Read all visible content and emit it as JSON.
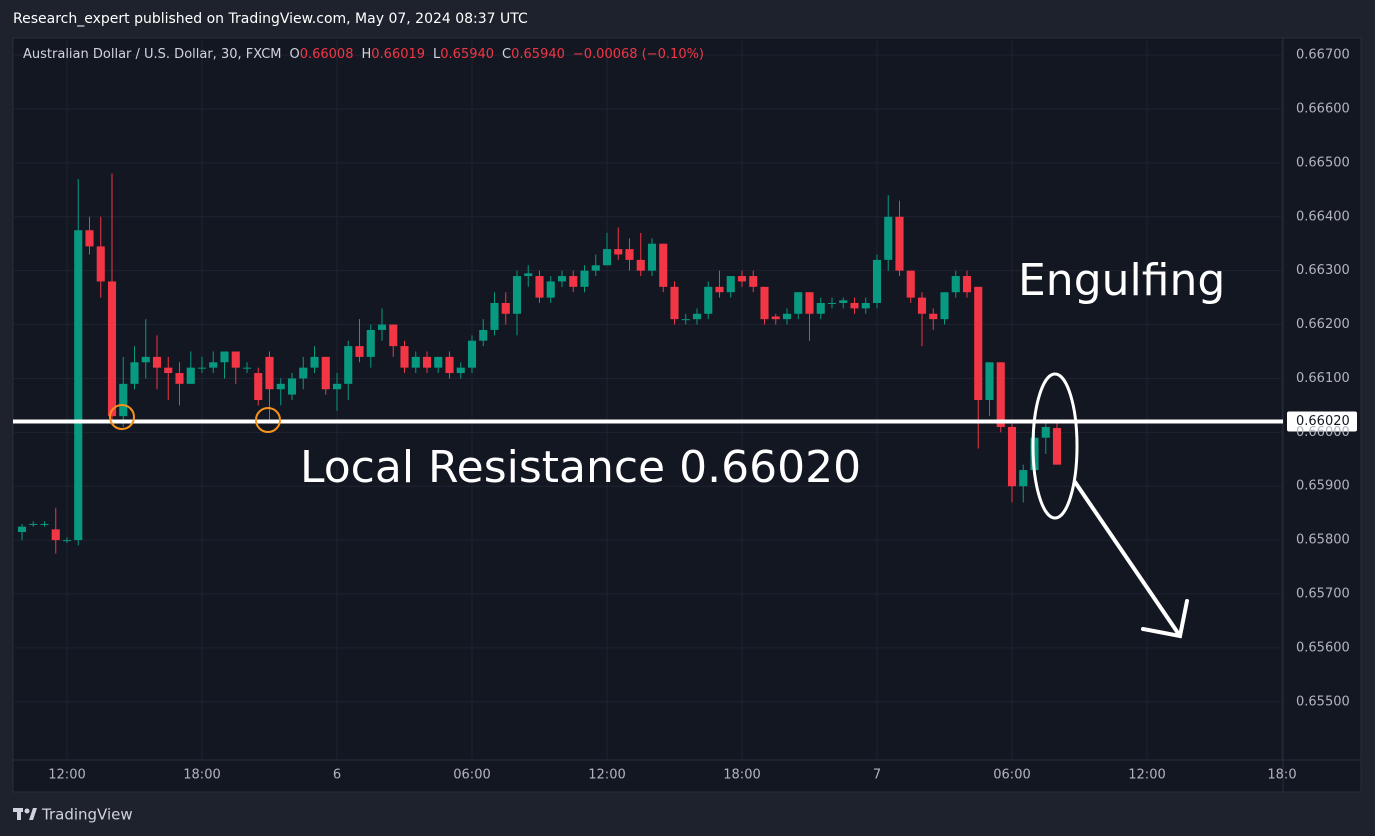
{
  "header": {
    "publisher": "Research_expert published on TradingView.com, May 07, 2024 08:37 UTC"
  },
  "footer": {
    "brand": "TradingView"
  },
  "chart_data": {
    "type": "candlestick",
    "title": "Australian Dollar / U.S. Dollar, 30, FXCM",
    "legend": {
      "o_label": "O",
      "o": "0.66008",
      "h_label": "H",
      "h": "0.66019",
      "l_label": "L",
      "l": "0.65940",
      "c_label": "C",
      "c": "0.65940",
      "change": "−0.00068 (−0.10%)"
    },
    "up_color": "#089981",
    "down_color": "#f23645",
    "x": [
      10,
      10.5,
      11,
      11.5,
      12,
      12.5,
      13,
      13.5,
      14,
      14.5,
      15,
      15.5,
      16,
      16.5,
      17,
      17.5,
      18,
      18.5,
      19,
      19.5,
      20,
      20.5,
      21,
      21.5,
      22,
      22.5,
      23,
      23.5,
      24,
      24.5,
      25,
      25.5,
      26,
      26.5,
      27,
      27.5,
      28,
      28.5,
      29,
      29.5,
      30,
      30.5,
      31,
      31.5,
      32,
      32.5,
      33,
      33.5,
      34,
      34.5,
      35,
      35.5,
      36,
      36.5,
      37,
      37.5,
      38,
      38.5,
      39,
      39.5,
      40,
      40.5,
      41,
      41.5,
      42,
      42.5,
      43,
      43.5,
      44,
      44.5,
      45,
      45.5,
      46,
      46.5,
      47,
      47.5,
      48,
      48.5,
      49,
      49.5,
      50,
      50.5,
      51,
      51.5,
      52,
      52.5,
      53,
      53.5,
      54,
      54.5,
      55,
      55.5,
      56
    ],
    "open": [
      0.65815,
      0.6583,
      0.6583,
      0.6582,
      0.658,
      0.658,
      0.66375,
      0.66345,
      0.6628,
      0.6603,
      0.6609,
      0.6613,
      0.6614,
      0.6612,
      0.6611,
      0.6609,
      0.6612,
      0.6612,
      0.6613,
      0.6615,
      0.6612,
      0.6611,
      0.6614,
      0.6608,
      0.6607,
      0.661,
      0.6612,
      0.6614,
      0.6608,
      0.6609,
      0.6616,
      0.6614,
      0.6619,
      0.662,
      0.6616,
      0.6612,
      0.6614,
      0.6612,
      0.6614,
      0.6611,
      0.6612,
      0.6617,
      0.6619,
      0.6624,
      0.6622,
      0.6629,
      0.6629,
      0.6625,
      0.6628,
      0.6629,
      0.6627,
      0.663,
      0.6631,
      0.6634,
      0.6634,
      0.6632,
      0.663,
      0.6635,
      0.6627,
      0.6621,
      0.6621,
      0.6622,
      0.6627,
      0.6626,
      0.6629,
      0.6629,
      0.6627,
      0.66215,
      0.6621,
      0.6622,
      0.6626,
      0.6622,
      0.6624,
      0.6624,
      0.6624,
      0.6623,
      0.6624,
      0.6632,
      0.664,
      0.663,
      0.6625,
      0.6622,
      0.6621,
      0.6626,
      0.6629,
      0.6627,
      0.6606,
      0.6613,
      0.6601,
      0.659,
      0.6593,
      0.6599,
      0.66008
    ],
    "high": [
      0.6583,
      0.65835,
      0.65835,
      0.6586,
      0.65805,
      0.6647,
      0.664,
      0.664,
      0.6648,
      0.6614,
      0.6616,
      0.6621,
      0.6618,
      0.6614,
      0.6613,
      0.6615,
      0.6614,
      0.6615,
      0.6615,
      0.6615,
      0.6613,
      0.6612,
      0.6615,
      0.661,
      0.6611,
      0.6614,
      0.6616,
      0.6614,
      0.6611,
      0.6617,
      0.6621,
      0.662,
      0.6623,
      0.662,
      0.6617,
      0.6615,
      0.6615,
      0.6614,
      0.6615,
      0.6613,
      0.6618,
      0.6621,
      0.6626,
      0.6626,
      0.663,
      0.6631,
      0.663,
      0.6629,
      0.663,
      0.663,
      0.6631,
      0.6633,
      0.6637,
      0.6638,
      0.6636,
      0.6637,
      0.6636,
      0.6635,
      0.6628,
      0.6622,
      0.6623,
      0.6628,
      0.663,
      0.6629,
      0.663,
      0.663,
      0.6627,
      0.6622,
      0.6623,
      0.6626,
      0.6626,
      0.6625,
      0.6625,
      0.6625,
      0.6625,
      0.6625,
      0.6633,
      0.6644,
      0.6643,
      0.663,
      0.6626,
      0.6623,
      0.6626,
      0.663,
      0.663,
      0.6627,
      0.6613,
      0.6613,
      0.6602,
      0.6594,
      0.66,
      0.6602,
      0.66019
    ],
    "low": [
      0.658,
      0.65825,
      0.65825,
      0.65775,
      0.65795,
      0.6579,
      0.6633,
      0.6625,
      0.6602,
      0.6601,
      0.6608,
      0.661,
      0.6608,
      0.6606,
      0.6605,
      0.6609,
      0.6611,
      0.6611,
      0.661,
      0.6609,
      0.6611,
      0.6605,
      0.6602,
      0.6605,
      0.6606,
      0.6608,
      0.6611,
      0.6607,
      0.6604,
      0.6606,
      0.6613,
      0.6612,
      0.6617,
      0.6614,
      0.6611,
      0.6611,
      0.6611,
      0.6611,
      0.661,
      0.661,
      0.6611,
      0.6616,
      0.6618,
      0.662,
      0.6618,
      0.6627,
      0.6624,
      0.6624,
      0.6627,
      0.6626,
      0.6626,
      0.6629,
      0.6631,
      0.6632,
      0.663,
      0.6629,
      0.6629,
      0.6626,
      0.662,
      0.662,
      0.662,
      0.6621,
      0.6625,
      0.6625,
      0.6627,
      0.6626,
      0.662,
      0.662,
      0.662,
      0.6621,
      0.6617,
      0.6621,
      0.6623,
      0.6623,
      0.6622,
      0.6622,
      0.6623,
      0.663,
      0.6629,
      0.6624,
      0.6616,
      0.6619,
      0.662,
      0.6625,
      0.6625,
      0.6597,
      0.6603,
      0.66,
      0.6587,
      0.6587,
      0.6592,
      0.6596,
      0.6594
    ],
    "close": [
      0.65825,
      0.6583,
      0.6583,
      0.658,
      0.658,
      0.66375,
      0.66345,
      0.6628,
      0.6603,
      0.6609,
      0.6613,
      0.6614,
      0.6612,
      0.6611,
      0.6609,
      0.6612,
      0.6612,
      0.6613,
      0.6615,
      0.6612,
      0.6612,
      0.6606,
      0.6608,
      0.6609,
      0.661,
      0.6612,
      0.6614,
      0.6608,
      0.6609,
      0.6616,
      0.6614,
      0.6619,
      0.662,
      0.6616,
      0.6612,
      0.6614,
      0.6612,
      0.6614,
      0.6611,
      0.6612,
      0.6617,
      0.6619,
      0.6624,
      0.6622,
      0.6629,
      0.66295,
      0.6625,
      0.6628,
      0.6629,
      0.6627,
      0.663,
      0.6631,
      0.6634,
      0.6633,
      0.6632,
      0.663,
      0.6635,
      0.6627,
      0.6621,
      0.6621,
      0.6622,
      0.6627,
      0.6626,
      0.6629,
      0.6628,
      0.6627,
      0.6621,
      0.6621,
      0.6622,
      0.6626,
      0.6622,
      0.6624,
      0.6624,
      0.66245,
      0.6623,
      0.6624,
      0.6632,
      0.664,
      0.663,
      0.6625,
      0.6622,
      0.6621,
      0.6626,
      0.6629,
      0.6626,
      0.6606,
      0.6613,
      0.6601,
      0.659,
      0.6593,
      0.6599,
      0.6601,
      0.6594
    ],
    "xlim": [
      9.6,
      66
    ],
    "xticks": [
      {
        "value": 12,
        "label": "12:00"
      },
      {
        "value": 18,
        "label": "18:00"
      },
      {
        "value": 24,
        "label": "6"
      },
      {
        "value": 30,
        "label": "06:00"
      },
      {
        "value": 36,
        "label": "12:00"
      },
      {
        "value": 42,
        "label": "18:00"
      },
      {
        "value": 48,
        "label": "7"
      },
      {
        "value": 54,
        "label": "06:00"
      },
      {
        "value": 60,
        "label": "12:00"
      },
      {
        "value": 66,
        "label": "18:0"
      }
    ],
    "ylim": [
      0.65392,
      0.66728
    ],
    "yticks": [
      {
        "value": 0.655,
        "label": "0.65500"
      },
      {
        "value": 0.656,
        "label": "0.65600"
      },
      {
        "value": 0.657,
        "label": "0.65700"
      },
      {
        "value": 0.658,
        "label": "0.65800"
      },
      {
        "value": 0.659,
        "label": "0.65900"
      },
      {
        "value": 0.66,
        "label": "0.66000"
      },
      {
        "value": 0.661,
        "label": "0.66100"
      },
      {
        "value": 0.662,
        "label": "0.66200"
      },
      {
        "value": 0.663,
        "label": "0.66300"
      },
      {
        "value": 0.664,
        "label": "0.66400"
      },
      {
        "value": 0.665,
        "label": "0.66500"
      },
      {
        "value": 0.666,
        "label": "0.66600"
      },
      {
        "value": 0.667,
        "label": "0.66700"
      }
    ],
    "grid": true,
    "resistance": {
      "value": 0.6602,
      "label": "0.66020"
    },
    "annotations": [
      "Local Resistance 0.66020",
      "Engulfing"
    ]
  }
}
